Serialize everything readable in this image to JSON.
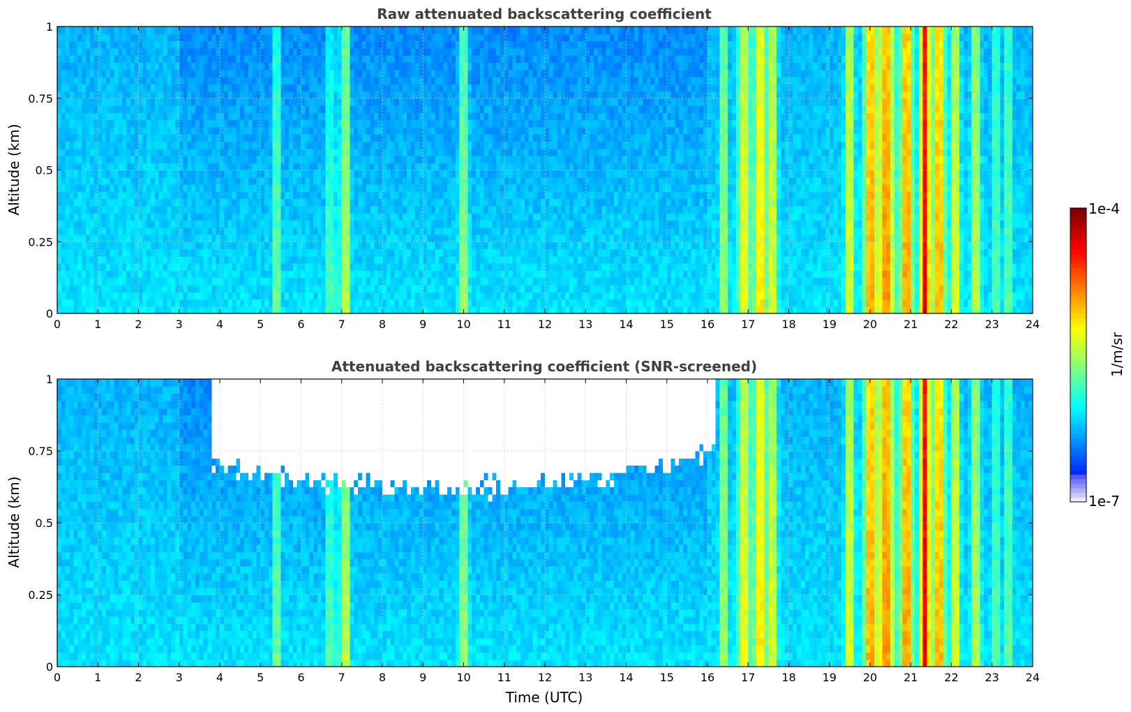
{
  "chart_data": [
    {
      "type": "heatmap",
      "title": "Raw attenuated backscattering coefficient",
      "xlabel": "",
      "ylabel": "Altitude (km)",
      "xlim": [
        0,
        24
      ],
      "ylim": [
        0,
        1
      ],
      "x_ticks": [
        "0",
        "1",
        "2",
        "3",
        "4",
        "5",
        "6",
        "7",
        "8",
        "9",
        "10",
        "11",
        "12",
        "13",
        "14",
        "15",
        "16",
        "17",
        "18",
        "19",
        "20",
        "21",
        "22",
        "23",
        "24"
      ],
      "y_ticks": [
        "0",
        "0.25",
        "0.5",
        "0.75",
        "1"
      ],
      "grid": true,
      "screened": false
    },
    {
      "type": "heatmap",
      "title": "Attenuated backscattering coefficient (SNR-screened)",
      "xlabel": "Time (UTC)",
      "ylabel": "Altitude (km)",
      "xlim": [
        0,
        24
      ],
      "ylim": [
        0,
        1
      ],
      "x_ticks": [
        "0",
        "1",
        "2",
        "3",
        "4",
        "5",
        "6",
        "7",
        "8",
        "9",
        "10",
        "11",
        "12",
        "13",
        "14",
        "15",
        "16",
        "17",
        "18",
        "19",
        "20",
        "21",
        "22",
        "23",
        "24"
      ],
      "y_ticks": [
        "0",
        "0.25",
        "0.5",
        "0.75",
        "1"
      ],
      "grid": true,
      "screened": true
    }
  ],
  "colorbar": {
    "label": "1/m/sr",
    "max_label": "1e-4",
    "min_label": "1e-7",
    "colormap": "jet",
    "scale": "log"
  },
  "profile": {
    "base_log_intensity": 0.3,
    "plumes": [
      {
        "t": 5.4,
        "w": 0.05,
        "v": 0.35
      },
      {
        "t": 6.7,
        "w": 0.06,
        "v": 0.2
      },
      {
        "t": 6.9,
        "w": 0.05,
        "v": 0.15
      },
      {
        "t": 7.1,
        "w": 0.08,
        "v": 0.3
      },
      {
        "t": 10.0,
        "w": 0.1,
        "v": 0.22
      },
      {
        "t": 16.4,
        "w": 0.08,
        "v": 0.25
      },
      {
        "t": 16.9,
        "w": 0.15,
        "v": 0.28
      },
      {
        "t": 17.3,
        "w": 0.15,
        "v": 0.32
      },
      {
        "t": 17.6,
        "w": 0.1,
        "v": 0.28
      },
      {
        "t": 19.5,
        "w": 0.1,
        "v": 0.3
      },
      {
        "t": 20.0,
        "w": 0.15,
        "v": 0.38
      },
      {
        "t": 20.4,
        "w": 0.2,
        "v": 0.4
      },
      {
        "t": 20.9,
        "w": 0.15,
        "v": 0.4
      },
      {
        "t": 21.35,
        "w": 0.12,
        "v": 0.55
      },
      {
        "t": 21.7,
        "w": 0.15,
        "v": 0.38
      },
      {
        "t": 22.1,
        "w": 0.1,
        "v": 0.3
      },
      {
        "t": 22.6,
        "w": 0.1,
        "v": 0.25
      },
      {
        "t": 23.1,
        "w": 0.06,
        "v": 0.2
      },
      {
        "t": 23.4,
        "w": 0.05,
        "v": 0.3
      }
    ]
  }
}
